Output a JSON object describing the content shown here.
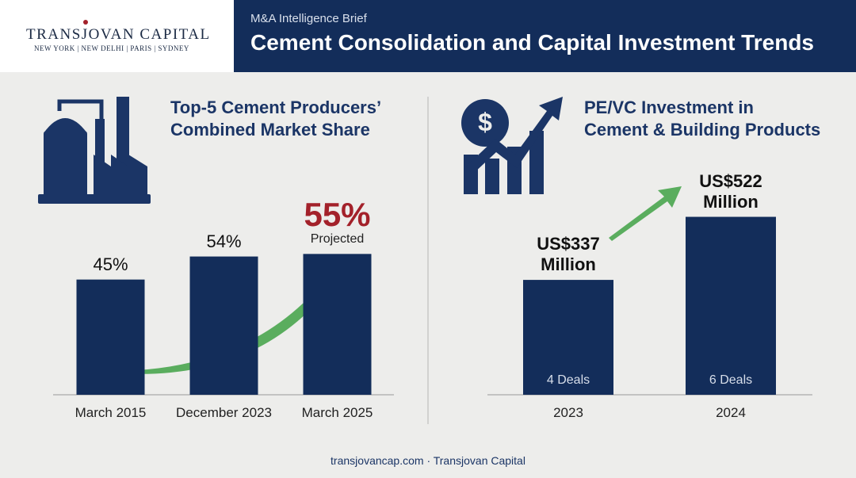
{
  "header": {
    "logo": "TRANSJOVAN CAPITAL",
    "cities": "NEW YORK | NEW DELHI | PARIS | SYDNEY",
    "kicker": "M&A Intelligence Brief",
    "title": "Cement Consolidation and Capital Investment Trends"
  },
  "chart_data": [
    {
      "type": "bar",
      "title": "Top-5 Cement Producers’\nCombined Market Share",
      "categories": [
        "March 2015",
        "December 2023",
        "March 2025"
      ],
      "values": [
        45,
        54,
        55
      ],
      "value_labels": [
        "45%",
        "54%",
        "55%"
      ],
      "color": "#132d5a",
      "annotation": "Projected",
      "highlight_color": "#a3212a"
    },
    {
      "type": "bar",
      "title": "PE/VC Investment in\nCement & Building Products",
      "categories": [
        "2023",
        "2024"
      ],
      "values": [
        337,
        522
      ],
      "value_labels": [
        "US$337\nMillion",
        "US$522\nMillion"
      ],
      "bar_labels": [
        "4 Deals",
        "6 Deals"
      ],
      "color": "#132d5a"
    }
  ],
  "footer": "transjovancap.com · Transjovan Capital"
}
